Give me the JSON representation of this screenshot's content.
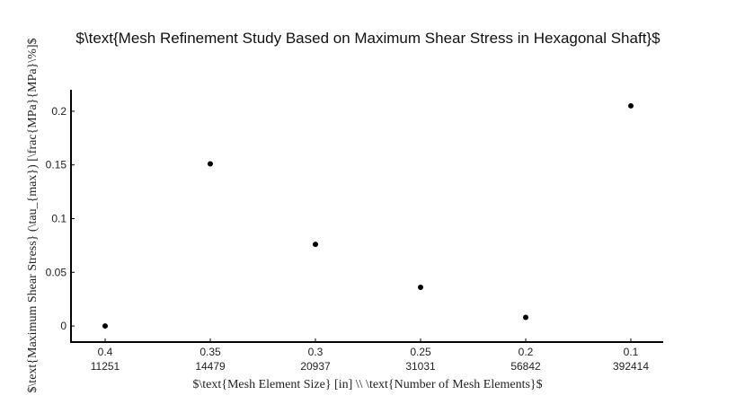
{
  "chart_data": {
    "type": "scatter",
    "title": "$\\text{Mesh Refinement Study Based on Maximum Shear Stress in Hexagonal Shaft}$",
    "xlabel": "$\\text{Mesh Element Size} [in] \\\\ \\text{Number of Mesh Elements}$",
    "ylabel": "$\\text{Maximum Shear Stress} (\\tau_{max}) [\\frac{MPa}{MPa}\\%]$",
    "x_categories": [
      "0.4",
      "0.35",
      "0.3",
      "0.25",
      "0.2",
      "0.1"
    ],
    "x_secondary_labels": [
      "11251",
      "14479",
      "20937",
      "31031",
      "56842",
      "392414"
    ],
    "y_ticks": [
      0,
      0.05,
      0.1,
      0.15,
      0.2
    ],
    "y_tick_labels": [
      "0",
      "0.05",
      "0.1",
      "0.15",
      "0.2"
    ],
    "ylim": [
      -0.015,
      0.22
    ],
    "values": [
      0.0,
      0.151,
      0.076,
      0.036,
      0.008,
      0.205
    ],
    "grid": false,
    "marker_color": "#000000"
  }
}
